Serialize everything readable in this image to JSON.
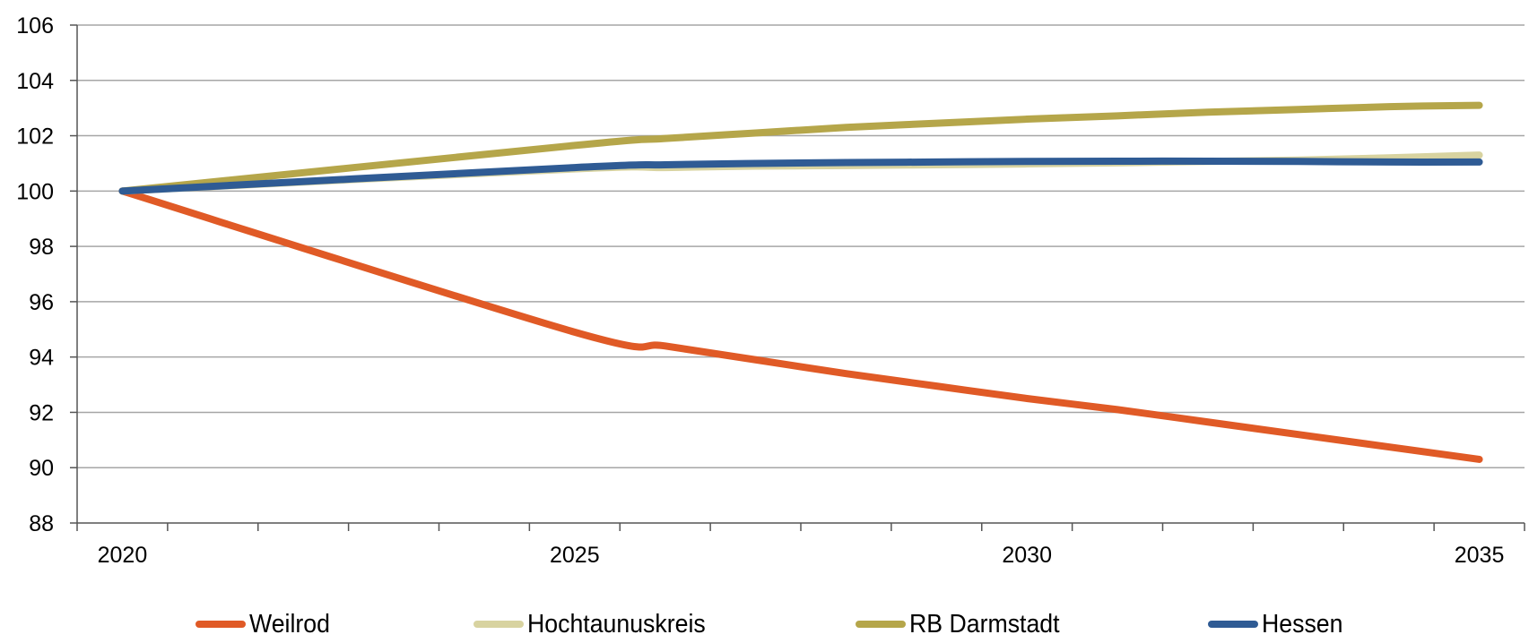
{
  "chart_data": {
    "type": "line",
    "title": "",
    "xlabel": "",
    "ylabel": "",
    "x": [
      2020,
      2025,
      2026,
      2027,
      2028,
      2029,
      2030,
      2031,
      2032,
      2033,
      2034,
      2035
    ],
    "xticks": [
      2020,
      2025,
      2030,
      2035
    ],
    "xtick_labels": [
      "2020",
      "2025",
      "2030",
      "2035"
    ],
    "xlim": [
      2019.5,
      2035.5
    ],
    "ylim": [
      88,
      106
    ],
    "yticks": [
      88,
      90,
      92,
      94,
      96,
      98,
      100,
      102,
      104,
      106
    ],
    "ytick_labels": [
      "88",
      "90",
      "92",
      "94",
      "96",
      "98",
      "100",
      "102",
      "104",
      "106"
    ],
    "grid": true,
    "legend_position": "bottom",
    "series": [
      {
        "name": "Weilrod",
        "color": "#e05a26",
        "values": [
          100,
          94.9,
          94.4,
          93.9,
          93.4,
          92.95,
          92.5,
          92.1,
          91.65,
          91.2,
          90.75,
          90.3
        ]
      },
      {
        "name": "Hochtaunuskreis",
        "color": "#d8d3a0",
        "values": [
          100,
          100.8,
          100.85,
          100.9,
          100.92,
          100.95,
          100.98,
          101.02,
          101.07,
          101.12,
          101.2,
          101.3
        ]
      },
      {
        "name": "RB Darmstadt",
        "color": "#b5a64a",
        "values": [
          100,
          101.65,
          101.9,
          102.1,
          102.3,
          102.45,
          102.6,
          102.72,
          102.85,
          102.95,
          103.05,
          103.1
        ]
      },
      {
        "name": "Hessen",
        "color": "#2f5b94",
        "values": [
          100,
          100.85,
          100.95,
          101.0,
          101.03,
          101.05,
          101.07,
          101.08,
          101.08,
          101.07,
          101.05,
          101.05
        ]
      }
    ]
  }
}
